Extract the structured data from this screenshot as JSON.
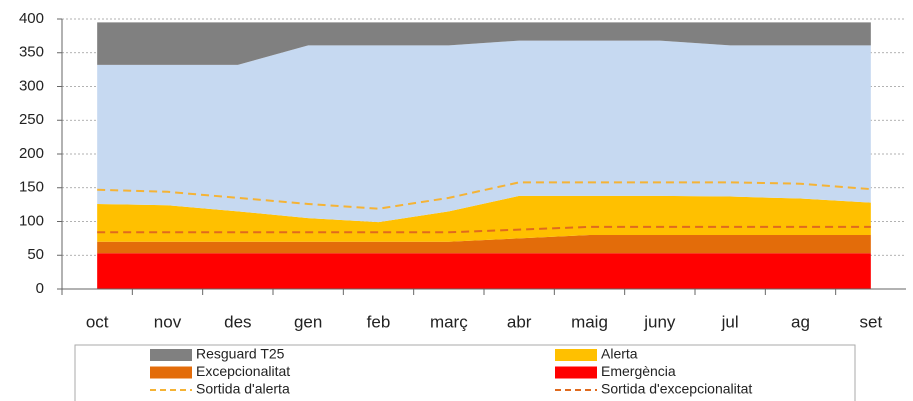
{
  "chart_data": {
    "type": "area",
    "categories": [
      "oct",
      "nov",
      "des",
      "gen",
      "feb",
      "març",
      "abr",
      "maig",
      "juny",
      "jul",
      "ag",
      "set"
    ],
    "series": [
      {
        "name": "Emergència",
        "color": "#ff0000",
        "values": [
          53,
          53,
          53,
          53,
          53,
          53,
          53,
          53,
          53,
          53,
          53,
          53
        ]
      },
      {
        "name": "Excepcionalitat",
        "color": "#e36c0a",
        "values": [
          17,
          17,
          17,
          17,
          17,
          17,
          22,
          27,
          27,
          27,
          27,
          27
        ]
      },
      {
        "name": "Alerta",
        "color": "#ffc000",
        "values": [
          56,
          54,
          45,
          35,
          29,
          45,
          63,
          58,
          58,
          57,
          54,
          48
        ]
      },
      {
        "color": "#c6d9f1",
        "values": [
          206,
          208,
          217,
          256,
          262,
          246,
          230,
          230,
          230,
          224,
          227,
          233
        ]
      },
      {
        "name": "Resguard T25",
        "color": "#808080",
        "values": [
          63,
          63,
          63,
          34,
          34,
          34,
          27,
          27,
          27,
          34,
          34,
          34
        ]
      },
      {
        "name": "Sortida d'alerta",
        "type": "line",
        "dash": true,
        "color": "#f5b335",
        "values": [
          147,
          144,
          135,
          126,
          119,
          135,
          158,
          158,
          158,
          158,
          156,
          148
        ]
      },
      {
        "name": "Sortida d'excepcionalitat",
        "type": "line",
        "dash": true,
        "color": "#e06a1e",
        "values": [
          84,
          84,
          84,
          84,
          84,
          84,
          88,
          92,
          92,
          92,
          92,
          92
        ]
      }
    ],
    "ylim": [
      0,
      400
    ],
    "yticks": [
      0,
      50,
      100,
      150,
      200,
      250,
      300,
      350,
      400
    ],
    "grid": true
  }
}
